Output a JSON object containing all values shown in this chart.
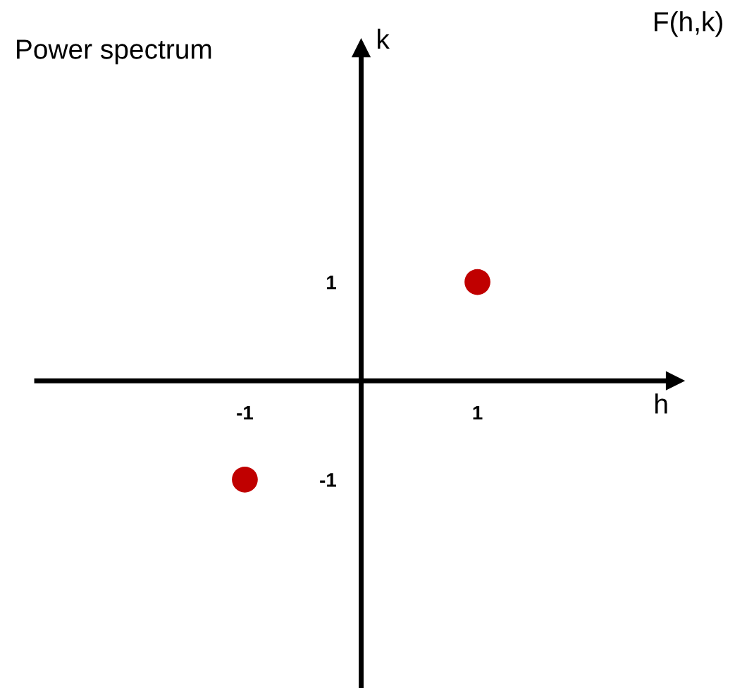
{
  "chart_data": {
    "type": "scatter",
    "title": "Power spectrum",
    "xlabel": "h",
    "ylabel": "k",
    "annotations": [
      "F(h,k)"
    ],
    "x": [
      1,
      -1
    ],
    "series": [
      {
        "color": "#c00000",
        "values": [
          1,
          -1
        ]
      }
    ],
    "xlim": [
      -2.79,
      2.7
    ],
    "ylim": [
      -3.11,
      3.37
    ],
    "xticks": [
      -1,
      1
    ],
    "yticks": [
      -1,
      1
    ],
    "grid": false,
    "legend": false,
    "marker": "circle"
  }
}
